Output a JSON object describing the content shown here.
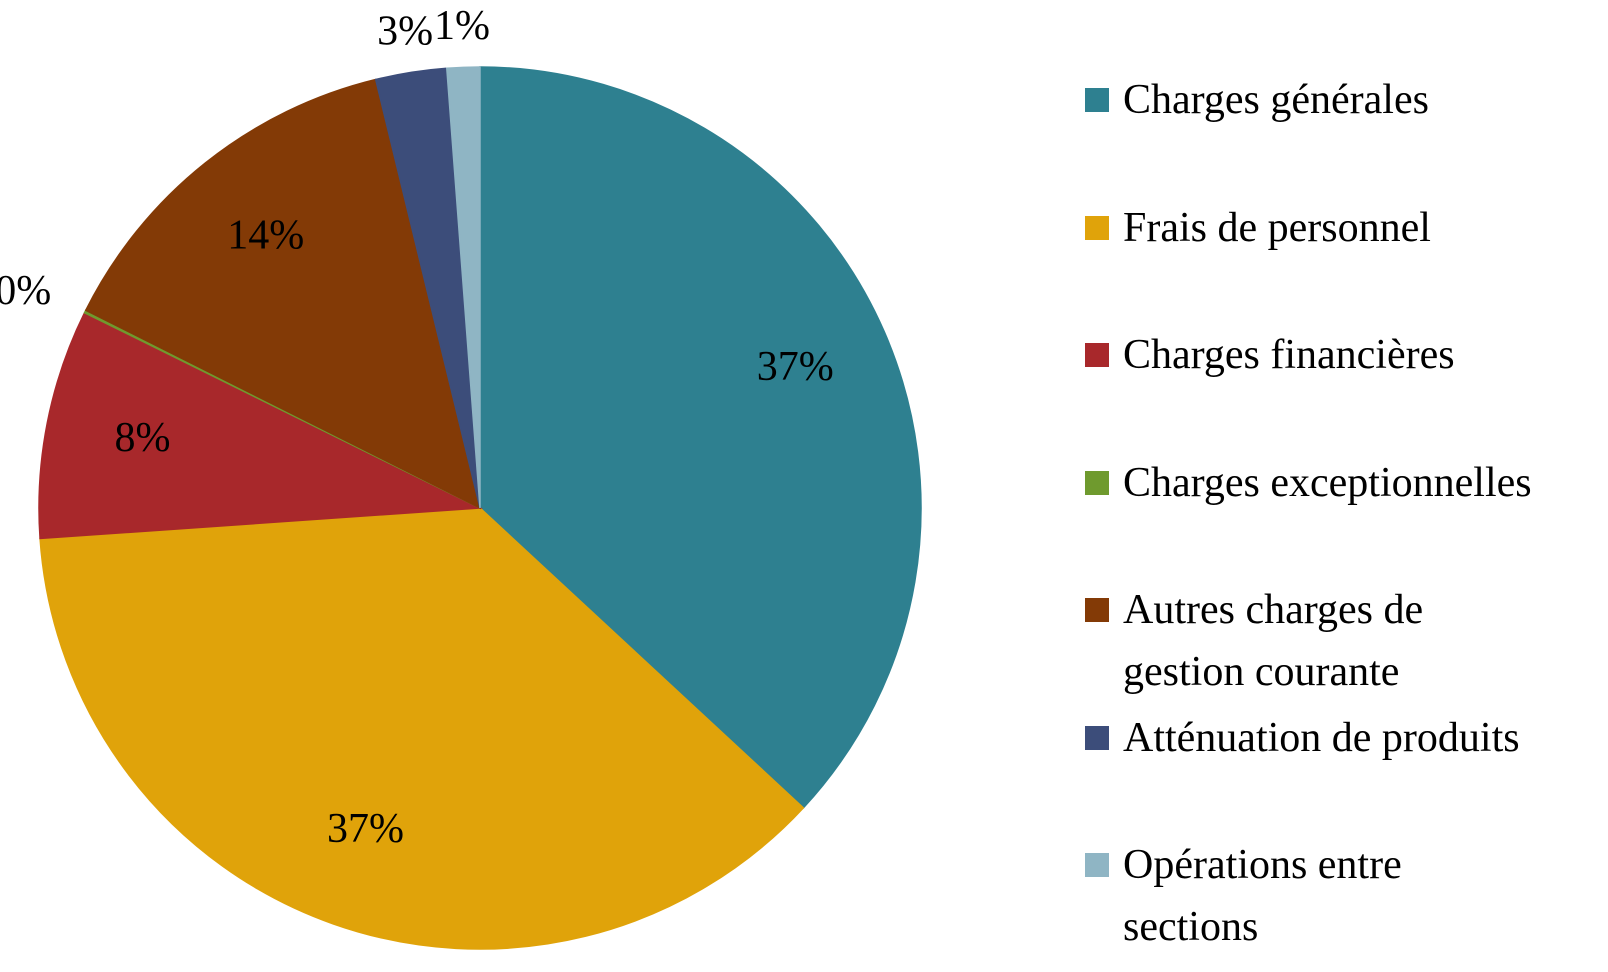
{
  "chart_data": {
    "type": "pie",
    "categories": [
      "Charges générales",
      "Frais de personnel",
      "Charges financières",
      "Charges exceptionnelles",
      "Autres charges de gestion courante",
      "Atténuation de produits",
      "Opérations entre sections"
    ],
    "values": [
      36.9,
      37.0,
      8.4,
      0.1,
      13.8,
      2.6,
      1.2
    ],
    "value_labels": [
      "37%",
      "37%",
      "8%",
      "0%",
      "14%",
      "3%",
      "1%"
    ],
    "colors": [
      "#2e8090",
      "#e0a30a",
      "#a8282b",
      "#6f9a2e",
      "#833a06",
      "#3c4d7a",
      "#8fb5c4"
    ],
    "legend": "right"
  }
}
